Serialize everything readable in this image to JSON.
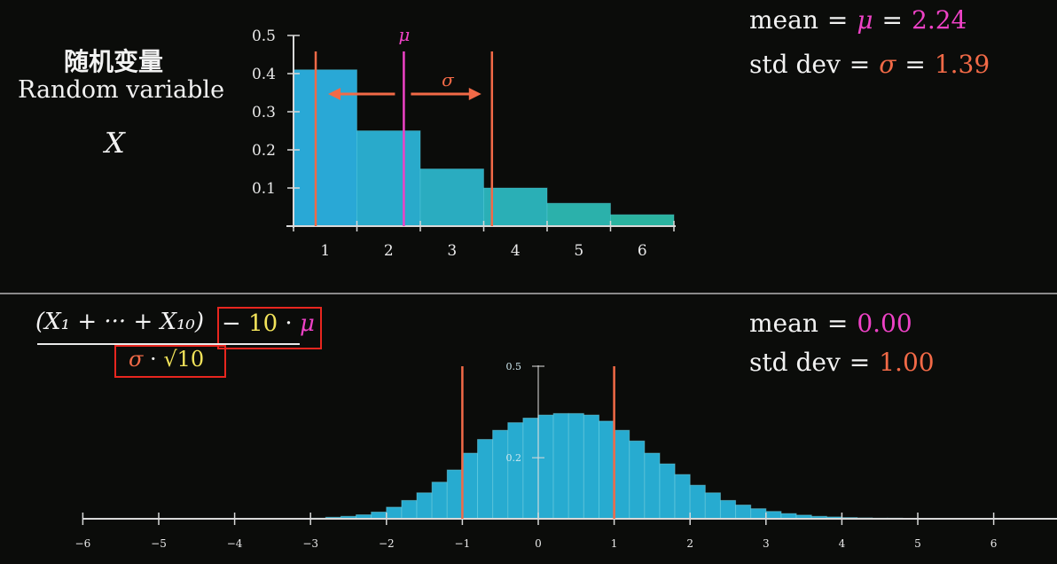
{
  "header": {
    "title_cn": "随机变量",
    "title_en": "Random variable",
    "variable": "X"
  },
  "top_stats": {
    "mean_label": "mean",
    "mean_symbol": "μ",
    "mean_value": "2.24",
    "std_label": "std dev",
    "std_symbol": "σ",
    "std_value": "1.39"
  },
  "bottom_stats": {
    "mean_label": "mean",
    "mean_value": "0.00",
    "std_label": "std dev",
    "std_value": "1.00"
  },
  "formula": {
    "numerator_left": "(X₁ + ··· + X₁₀)",
    "numerator_minus": "−",
    "numerator_ten": "10",
    "numerator_dot": "·",
    "numerator_mu": "μ",
    "denominator_sigma": "σ",
    "denominator_dot": "·",
    "denominator_sqrt": "√10"
  },
  "colors": {
    "mean": "#ee42c6",
    "std": "#f26a47",
    "bar_top_left": "#29a8d6",
    "bar_teal": "#2bb3a0",
    "axis": "#d8d8d8",
    "red_box": "#e8261f",
    "yellow": "#f2e35a"
  },
  "chart_data": [
    {
      "type": "bar",
      "categories": [
        "1",
        "2",
        "3",
        "4",
        "5",
        "6"
      ],
      "values": [
        0.41,
        0.25,
        0.15,
        0.1,
        0.06,
        0.03
      ],
      "ylim": [
        0,
        0.5
      ],
      "yticks": [
        "0.1",
        "0.2",
        "0.3",
        "0.4",
        "0.5"
      ],
      "mean": 2.24,
      "std": 1.39,
      "annotations": {
        "mean": "μ",
        "std": "σ"
      },
      "grid": false
    },
    {
      "type": "bar",
      "xlim": [
        -6,
        7
      ],
      "xticks": [
        "−6",
        "−5",
        "−4",
        "−3",
        "−2",
        "−1",
        "0",
        "1",
        "2",
        "3",
        "4",
        "5",
        "6"
      ],
      "ylim": [
        0,
        0.5
      ],
      "yticks": [
        "0.2",
        "0.5"
      ],
      "bin_width": 0.2,
      "bins_start": -3.0,
      "values": [
        0.002,
        0.005,
        0.008,
        0.013,
        0.022,
        0.038,
        0.06,
        0.085,
        0.12,
        0.16,
        0.215,
        0.26,
        0.29,
        0.315,
        0.33,
        0.34,
        0.345,
        0.345,
        0.34,
        0.32,
        0.29,
        0.255,
        0.215,
        0.18,
        0.145,
        0.11,
        0.085,
        0.06,
        0.045,
        0.033,
        0.024,
        0.017,
        0.012,
        0.008,
        0.006,
        0.004,
        0.003,
        0.002,
        0.002,
        0.001,
        0.001,
        0.001,
        0.001,
        0.001,
        0.001,
        0.001,
        0.001,
        0.001,
        0.001,
        0.001
      ],
      "mean": 0.0,
      "std": 1.0,
      "grid": false
    }
  ]
}
